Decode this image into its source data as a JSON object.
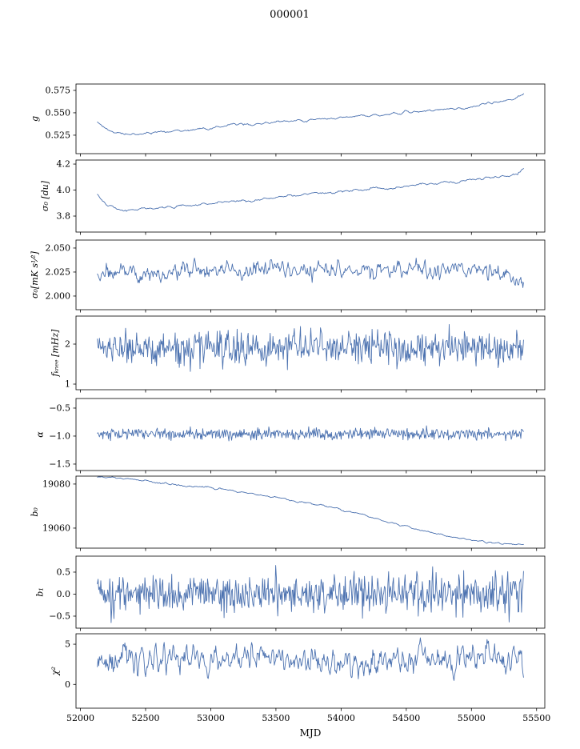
{
  "title": "000001",
  "xlabel": "MJD",
  "figure": {
    "background": "#ffffff",
    "line_color": "#4c72b0",
    "axis_color": "#000000"
  },
  "xlim": [
    51966,
    55563
  ],
  "x_ticks": [
    52000,
    52500,
    53000,
    53500,
    54000,
    54500,
    55000,
    55500
  ],
  "x_tick_labels": [
    "52000",
    "52500",
    "53000",
    "53500",
    "54000",
    "54500",
    "55000",
    "55500"
  ],
  "chart_data": [
    {
      "type": "line",
      "id": "g",
      "ylabel": "g",
      "yticks": [
        0.525,
        0.55,
        0.575
      ],
      "ytick_labels": [
        "0.525",
        "0.550",
        "0.575"
      ],
      "ylim": [
        0.5044,
        0.5821
      ],
      "x_range": [
        52130,
        55400
      ],
      "n_points": 500,
      "noise_std": 0.0007,
      "noise_smooth": 5,
      "trend_points": [
        [
          52130,
          0.5385
        ],
        [
          52180,
          0.533
        ],
        [
          52240,
          0.5288
        ],
        [
          52310,
          0.5264
        ],
        [
          52400,
          0.526
        ],
        [
          52500,
          0.527
        ],
        [
          52620,
          0.5283
        ],
        [
          52750,
          0.5298
        ],
        [
          52900,
          0.5315
        ],
        [
          53000,
          0.533
        ],
        [
          53100,
          0.5352
        ],
        [
          53180,
          0.5368
        ],
        [
          53260,
          0.537
        ],
        [
          53330,
          0.5362
        ],
        [
          53420,
          0.5385
        ],
        [
          53520,
          0.5398
        ],
        [
          53650,
          0.5412
        ],
        [
          53800,
          0.5432
        ],
        [
          53950,
          0.544
        ],
        [
          54100,
          0.546
        ],
        [
          54250,
          0.5475
        ],
        [
          54400,
          0.5492
        ],
        [
          54550,
          0.5512
        ],
        [
          54700,
          0.553
        ],
        [
          54850,
          0.5542
        ],
        [
          54950,
          0.555
        ],
        [
          55050,
          0.5585
        ],
        [
          55150,
          0.5615
        ],
        [
          55250,
          0.5635
        ],
        [
          55330,
          0.5658
        ],
        [
          55400,
          0.5712
        ]
      ]
    },
    {
      "type": "line",
      "id": "sigma0-du",
      "ylabel": "σ₀ [du]",
      "yticks": [
        3.8,
        4.0,
        4.2
      ],
      "ytick_labels": [
        "3.8",
        "4.0",
        "4.2"
      ],
      "ylim": [
        3.677,
        4.231
      ],
      "x_range": [
        52130,
        55400
      ],
      "n_points": 500,
      "noise_std": 0.006,
      "noise_smooth": 5,
      "trend_points": [
        [
          52130,
          3.952
        ],
        [
          52180,
          3.905
        ],
        [
          52240,
          3.872
        ],
        [
          52310,
          3.85
        ],
        [
          52400,
          3.846
        ],
        [
          52500,
          3.856
        ],
        [
          52600,
          3.863
        ],
        [
          52700,
          3.869
        ],
        [
          52800,
          3.876
        ],
        [
          52900,
          3.886
        ],
        [
          53000,
          3.896
        ],
        [
          53100,
          3.907
        ],
        [
          53200,
          3.916
        ],
        [
          53300,
          3.921
        ],
        [
          53400,
          3.931
        ],
        [
          53500,
          3.946
        ],
        [
          53600,
          3.954
        ],
        [
          53700,
          3.961
        ],
        [
          53800,
          3.976
        ],
        [
          53900,
          3.981
        ],
        [
          54000,
          3.986
        ],
        [
          54100,
          3.996
        ],
        [
          54200,
          4.001
        ],
        [
          54300,
          4.011
        ],
        [
          54400,
          4.016
        ],
        [
          54500,
          4.026
        ],
        [
          54600,
          4.041
        ],
        [
          54700,
          4.046
        ],
        [
          54800,
          4.056
        ],
        [
          54900,
          4.061
        ],
        [
          55000,
          4.081
        ],
        [
          55100,
          4.096
        ],
        [
          55200,
          4.106
        ],
        [
          55300,
          4.111
        ],
        [
          55350,
          4.121
        ],
        [
          55400,
          4.168
        ]
      ]
    },
    {
      "type": "line",
      "id": "sigma0-mks",
      "ylabel": "σ₀[mK s¹⁄²]",
      "yticks": [
        2.0,
        2.025,
        2.05
      ],
      "ytick_labels": [
        "2.000",
        "2.025",
        "2.050"
      ],
      "ylim": [
        1.9858,
        2.0583
      ],
      "x_range": [
        52130,
        55400
      ],
      "n_points": 620,
      "noise_std": 0.0048,
      "noise_smooth": 3,
      "trend_points": [
        [
          52130,
          2.03
        ],
        [
          52250,
          2.0215
        ],
        [
          52400,
          2.023
        ],
        [
          52700,
          2.025
        ],
        [
          53000,
          2.026
        ],
        [
          53500,
          2.0268
        ],
        [
          54000,
          2.0268
        ],
        [
          54500,
          2.0275
        ],
        [
          54800,
          2.0268
        ],
        [
          55100,
          2.025
        ],
        [
          55300,
          2.0215
        ],
        [
          55400,
          2.019
        ]
      ]
    },
    {
      "type": "line",
      "id": "fknee",
      "ylabel": "fₖₙₑₑ [mHz]",
      "yticks": [
        1,
        2
      ],
      "ytick_labels": [
        "1",
        "2"
      ],
      "ylim": [
        0.86,
        2.7
      ],
      "x_range": [
        52130,
        55400
      ],
      "n_points": 620,
      "noise_std": 0.21,
      "noise_smooth": 1,
      "trend_points": [
        [
          52130,
          1.95
        ],
        [
          52500,
          1.88
        ],
        [
          53000,
          1.9
        ],
        [
          53500,
          1.92
        ],
        [
          54000,
          1.88
        ],
        [
          54500,
          1.9
        ],
        [
          55000,
          1.88
        ],
        [
          55400,
          1.87
        ]
      ]
    },
    {
      "type": "line",
      "id": "alpha",
      "ylabel": "α",
      "yticks": [
        -1.5,
        -1.0,
        -0.5
      ],
      "ytick_labels": [
        "−1.5",
        "−1.0",
        "−0.5"
      ],
      "ylim": [
        -1.615,
        -0.329
      ],
      "x_range": [
        52130,
        55400
      ],
      "n_points": 620,
      "noise_std": 0.052,
      "noise_smooth": 1,
      "trend_points": [
        [
          52130,
          -0.965
        ],
        [
          53000,
          -0.96
        ],
        [
          54000,
          -0.962
        ],
        [
          55400,
          -0.958
        ]
      ]
    },
    {
      "type": "line",
      "id": "b0",
      "ylabel": "b₀",
      "yticks": [
        19060,
        19080
      ],
      "ytick_labels": [
        "19060",
        "19080"
      ],
      "ylim": [
        19050.9,
        19083.6
      ],
      "x_range": [
        52130,
        55400
      ],
      "n_points": 500,
      "noise_std": 0.22,
      "noise_smooth": 5,
      "trend_points": [
        [
          52130,
          19083.2
        ],
        [
          52300,
          19082.6
        ],
        [
          52500,
          19081.4
        ],
        [
          52700,
          19080.0
        ],
        [
          52900,
          19078.8
        ],
        [
          53100,
          19077.4
        ],
        [
          53300,
          19075.9
        ],
        [
          53500,
          19073.9
        ],
        [
          53700,
          19071.9
        ],
        [
          53900,
          19069.9
        ],
        [
          54050,
          19067.7
        ],
        [
          54200,
          19065.4
        ],
        [
          54350,
          19063.0
        ],
        [
          54500,
          19060.7
        ],
        [
          54650,
          19058.5
        ],
        [
          54800,
          19056.5
        ],
        [
          54950,
          19054.9
        ],
        [
          55080,
          19053.9
        ],
        [
          55200,
          19053.3
        ],
        [
          55300,
          19053.0
        ],
        [
          55400,
          19052.6
        ]
      ]
    },
    {
      "type": "line",
      "id": "b1",
      "ylabel": "b₁",
      "yticks": [
        -0.5,
        0.0,
        0.5
      ],
      "ytick_labels": [
        "−0.5",
        "0.0",
        "0.5"
      ],
      "ylim": [
        -0.773,
        0.863
      ],
      "x_range": [
        52130,
        55400
      ],
      "n_points": 620,
      "noise_std": 0.22,
      "noise_smooth": 1,
      "trend_points": [
        [
          52130,
          0.0
        ],
        [
          55400,
          0.02
        ]
      ]
    },
    {
      "type": "line",
      "id": "chi2",
      "ylabel": "χ²",
      "yticks": [
        0,
        5
      ],
      "ytick_labels": [
        "0",
        "5"
      ],
      "ylim": [
        -2.96,
        6.3
      ],
      "x_range": [
        52130,
        55400
      ],
      "n_points": 620,
      "noise_std": 0.93,
      "noise_smooth": 3,
      "trend_points": [
        [
          52130,
          2.95
        ],
        [
          52600,
          3.1
        ],
        [
          53100,
          3.0
        ],
        [
          53600,
          3.1
        ],
        [
          54100,
          3.0
        ],
        [
          54600,
          3.1
        ],
        [
          55000,
          3.0
        ],
        [
          55400,
          3.2
        ]
      ]
    }
  ]
}
